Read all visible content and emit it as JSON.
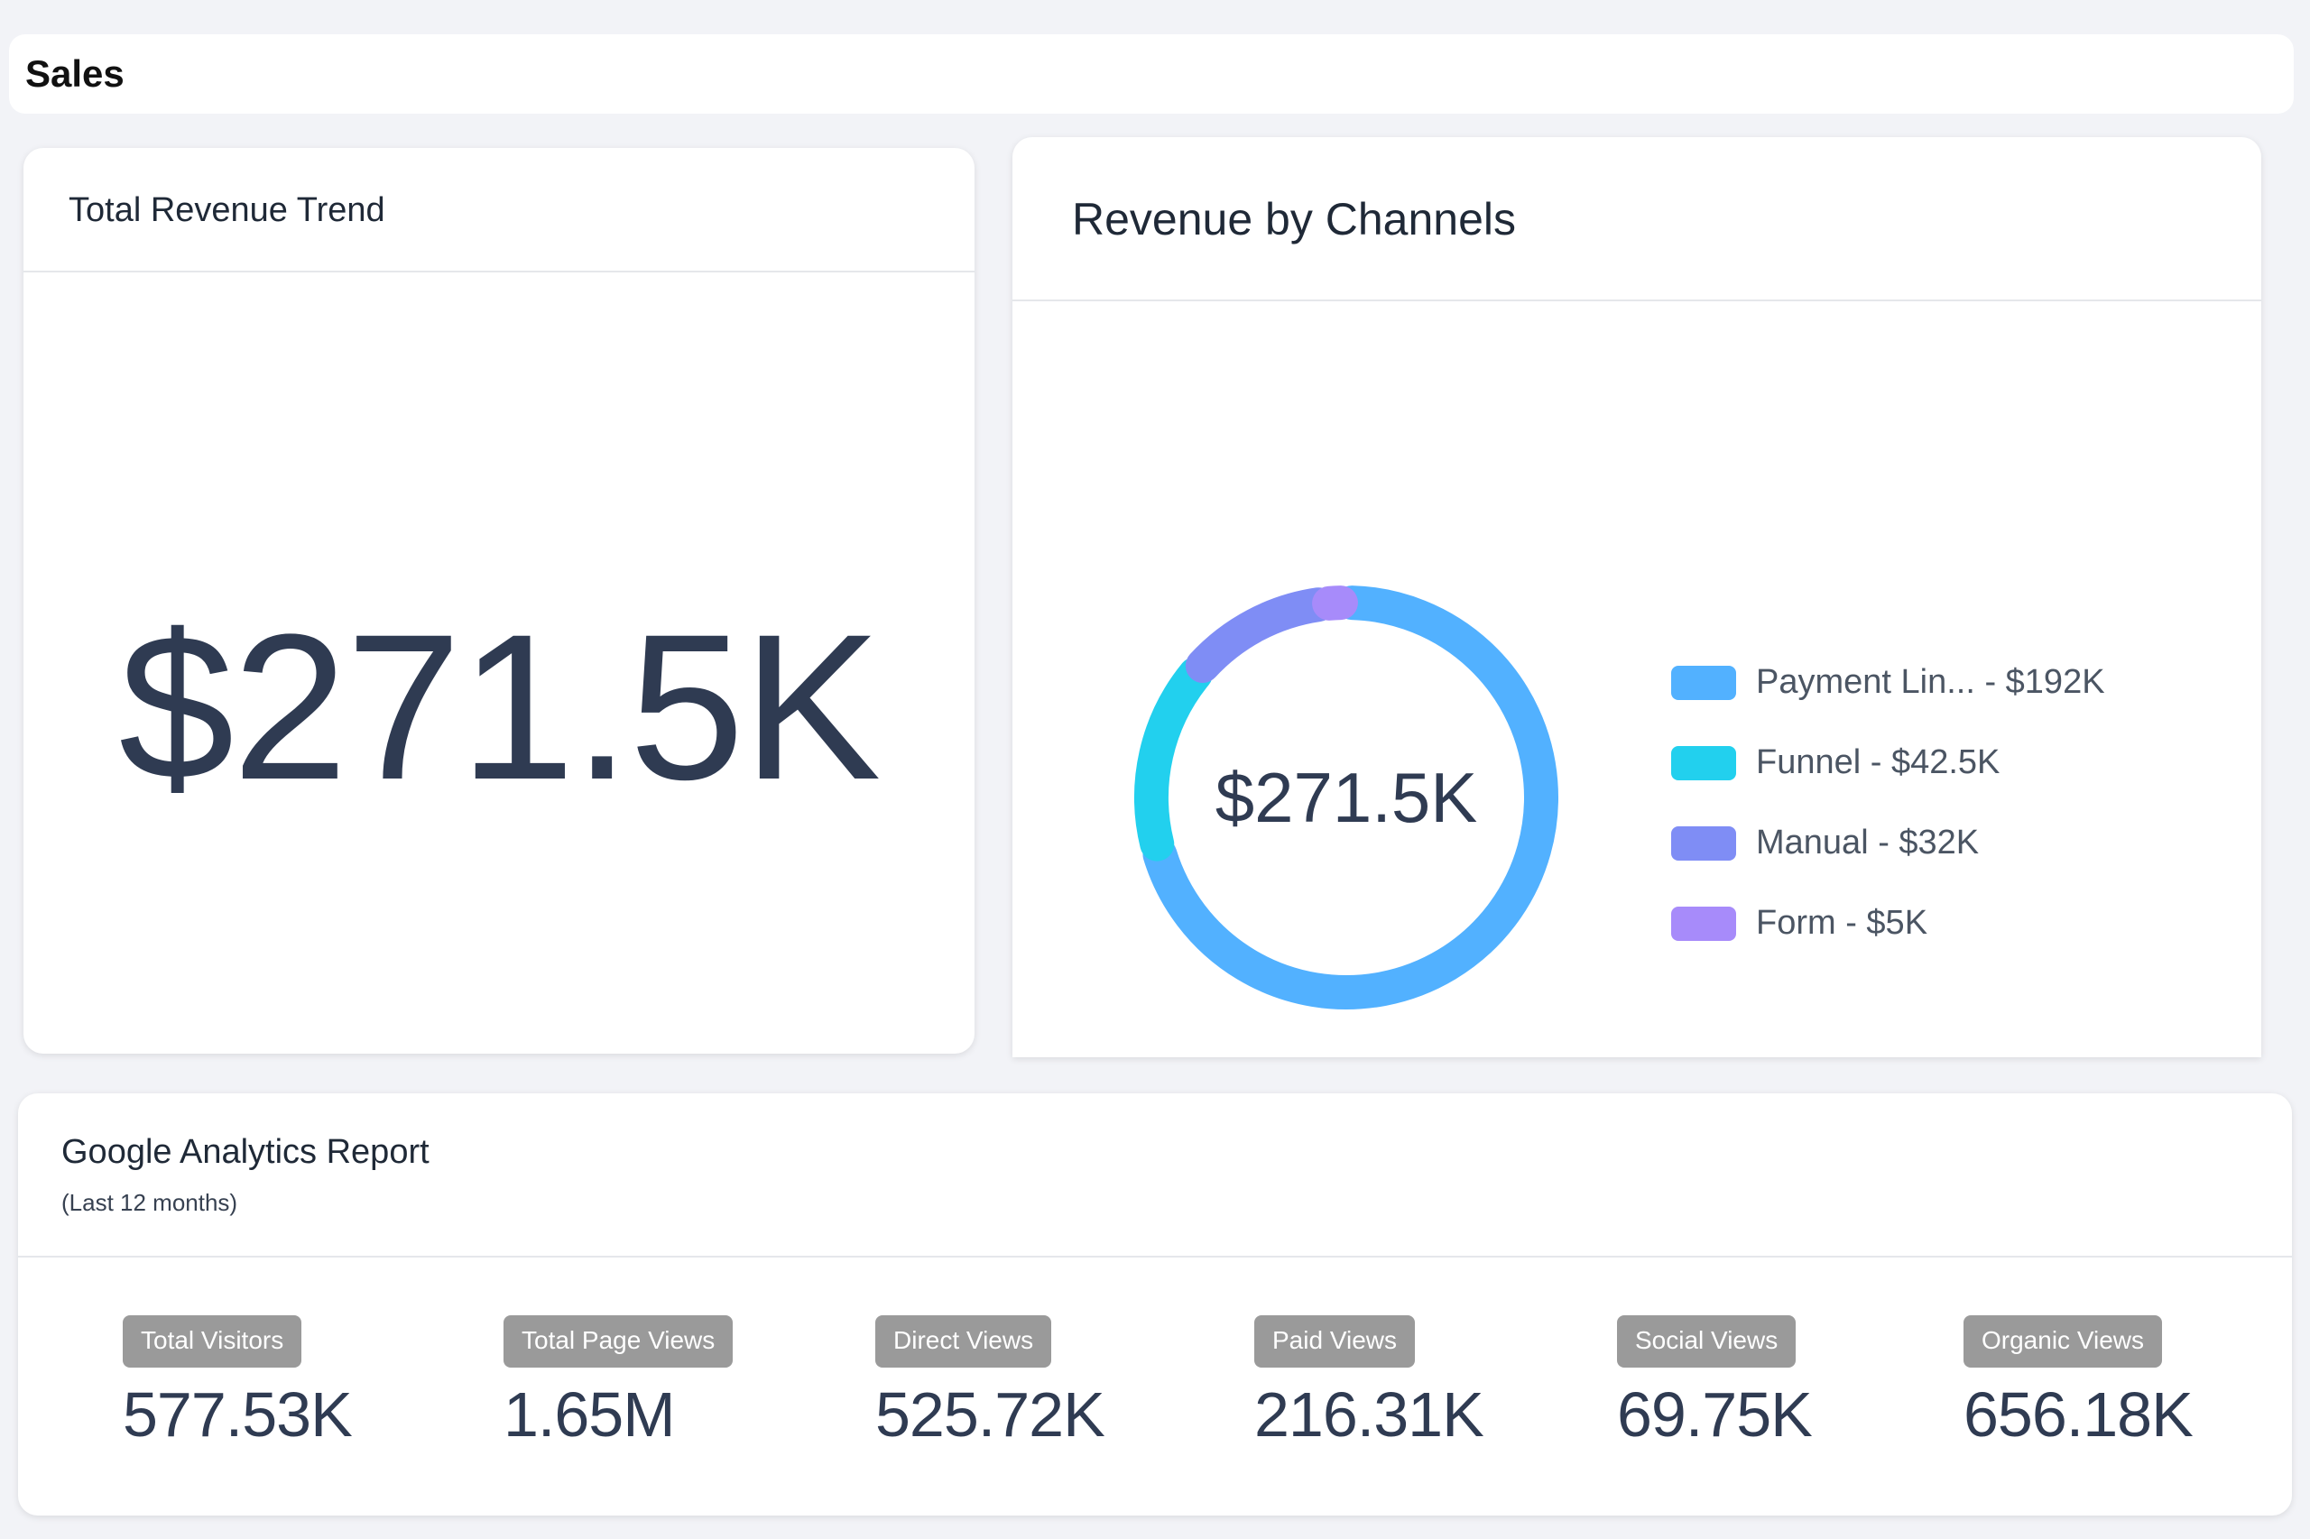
{
  "header": {
    "title": "Sales"
  },
  "trend_card": {
    "title": "Total Revenue Trend",
    "value": "$271.5K"
  },
  "channels_card": {
    "title": "Revenue by Channels",
    "center_value": "$271.5K",
    "legend": [
      {
        "label": "Payment Lin... - $192K",
        "color": "#52b1ff"
      },
      {
        "label": "Funnel - $42.5K",
        "color": "#22d0ee"
      },
      {
        "label": "Manual - $32K",
        "color": "#7f8df5"
      },
      {
        "label": "Form - $5K",
        "color": "#a78bfa"
      }
    ]
  },
  "chart_data": {
    "type": "pie",
    "categories": [
      "Payment Lin...",
      "Funnel",
      "Manual",
      "Form"
    ],
    "values": [
      192,
      42.5,
      32,
      5
    ],
    "colors": [
      "#52b1ff",
      "#22d0ee",
      "#7f8df5",
      "#a78bfa"
    ],
    "title": "Revenue by Channels",
    "donut": true,
    "center_label": "$271.5K"
  },
  "analytics_card": {
    "title": "Google Analytics Report",
    "subtitle": "(Last 12 months)",
    "metrics": [
      {
        "label": "Total Visitors",
        "value": "577.53K"
      },
      {
        "label": "Total Page Views",
        "value": "1.65M"
      },
      {
        "label": "Direct Views",
        "value": "525.72K"
      },
      {
        "label": "Paid Views",
        "value": "216.31K"
      },
      {
        "label": "Social Views",
        "value": "69.75K"
      },
      {
        "label": "Organic Views",
        "value": "656.18K"
      }
    ]
  }
}
